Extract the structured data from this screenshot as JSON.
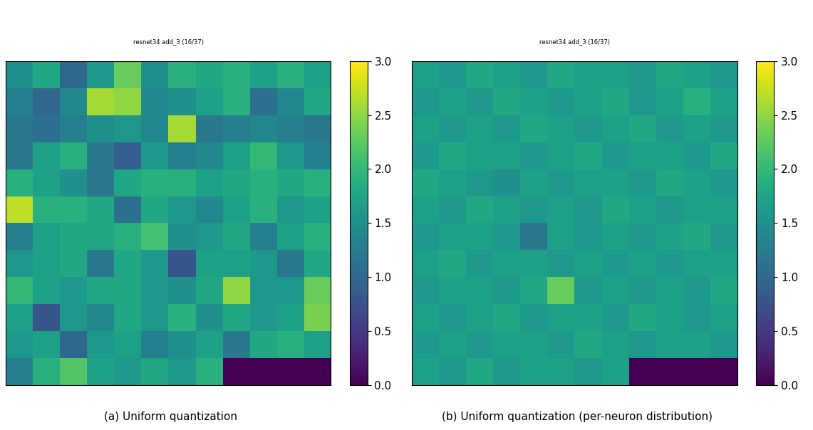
{
  "chart_data": [
    {
      "type": "heatmap",
      "title": "resnet34 add_3 (16/37)",
      "caption": "(a) Uniform quantization",
      "tick_labels": false,
      "color": "viridis",
      "cells": [
        [
          1.5,
          1.8,
          1.0,
          1.6,
          2.3,
          1.5,
          1.9,
          1.8,
          1.9,
          1.7,
          1.9,
          1.7
        ],
        [
          1.3,
          1.0,
          1.4,
          2.6,
          2.5,
          1.4,
          1.5,
          1.7,
          1.9,
          1.1,
          1.4,
          1.8
        ],
        [
          1.2,
          1.1,
          1.3,
          1.5,
          1.6,
          1.4,
          2.6,
          1.2,
          1.3,
          1.4,
          1.3,
          1.2
        ],
        [
          1.2,
          1.7,
          1.9,
          1.2,
          0.9,
          1.6,
          1.3,
          1.4,
          1.7,
          2.0,
          1.6,
          1.3
        ],
        [
          1.9,
          1.7,
          1.5,
          1.2,
          1.8,
          1.9,
          1.9,
          1.7,
          1.8,
          1.9,
          1.8,
          1.9
        ],
        [
          2.7,
          1.9,
          1.9,
          1.8,
          1.1,
          1.8,
          1.6,
          1.4,
          1.7,
          1.9,
          1.6,
          1.7
        ],
        [
          1.3,
          1.7,
          1.8,
          1.8,
          1.9,
          2.1,
          1.5,
          1.6,
          1.8,
          1.3,
          1.7,
          1.9
        ],
        [
          1.6,
          1.7,
          1.8,
          1.2,
          1.8,
          1.6,
          0.8,
          1.7,
          1.7,
          1.6,
          1.2,
          1.8
        ],
        [
          2.0,
          1.7,
          1.6,
          1.8,
          1.8,
          1.6,
          1.5,
          1.8,
          2.5,
          1.6,
          1.6,
          2.3
        ],
        [
          1.7,
          0.8,
          1.6,
          1.4,
          1.8,
          1.6,
          1.9,
          1.5,
          1.8,
          1.6,
          1.7,
          2.4
        ],
        [
          1.6,
          1.7,
          1.0,
          1.6,
          1.7,
          1.3,
          1.5,
          1.7,
          1.2,
          1.8,
          1.9,
          1.7
        ],
        [
          1.3,
          1.9,
          2.2,
          1.7,
          1.6,
          1.8,
          1.6,
          1.9,
          0.0,
          0.0,
          0.0,
          0.0
        ]
      ],
      "colorbar": {
        "range": [
          0,
          3
        ],
        "ticks": [
          {
            "value": 0,
            "label": "0.0"
          },
          {
            "value": 0.5,
            "label": "0.5"
          },
          {
            "value": 1,
            "label": "1.0"
          },
          {
            "value": 1.5,
            "label": "1.5"
          },
          {
            "value": 2,
            "label": "2.0"
          },
          {
            "value": 2.5,
            "label": "2.5"
          },
          {
            "value": 3,
            "label": "3.0"
          }
        ]
      }
    },
    {
      "type": "heatmap",
      "title": "resnet34 add_3 (16/37)",
      "caption": "(b) Uniform quantization (per-neuron distribution)",
      "tick_labels": false,
      "color": "viridis",
      "cells": [
        [
          1.7,
          1.6,
          1.8,
          1.7,
          1.6,
          1.8,
          1.7,
          1.7,
          1.6,
          1.8,
          1.7,
          1.6
        ],
        [
          1.6,
          1.7,
          1.6,
          1.8,
          1.7,
          1.6,
          1.7,
          1.8,
          1.6,
          1.7,
          1.9,
          1.7
        ],
        [
          1.7,
          1.6,
          1.7,
          1.6,
          1.8,
          1.7,
          1.6,
          1.7,
          1.8,
          1.6,
          1.7,
          1.6
        ],
        [
          1.6,
          1.8,
          1.7,
          1.7,
          1.6,
          1.7,
          1.8,
          1.6,
          1.7,
          1.7,
          1.6,
          1.8
        ],
        [
          1.8,
          1.7,
          1.6,
          1.5,
          1.7,
          1.6,
          1.7,
          1.7,
          1.6,
          1.8,
          1.7,
          1.6
        ],
        [
          1.7,
          1.6,
          1.8,
          1.7,
          1.6,
          1.7,
          1.6,
          1.8,
          1.7,
          1.6,
          1.7,
          1.7
        ],
        [
          1.6,
          1.7,
          1.7,
          1.6,
          1.2,
          1.7,
          1.6,
          1.7,
          1.6,
          1.7,
          1.8,
          1.6
        ],
        [
          1.7,
          1.8,
          1.6,
          1.7,
          1.7,
          1.6,
          1.7,
          1.6,
          1.7,
          1.6,
          1.7,
          1.7
        ],
        [
          1.6,
          1.7,
          1.7,
          1.6,
          1.8,
          2.3,
          1.6,
          1.7,
          1.6,
          1.7,
          1.6,
          1.8
        ],
        [
          1.7,
          1.6,
          1.7,
          1.8,
          1.6,
          1.7,
          1.7,
          1.6,
          1.8,
          1.7,
          1.6,
          1.7
        ],
        [
          1.6,
          1.7,
          1.6,
          1.7,
          1.7,
          1.6,
          1.8,
          1.7,
          1.6,
          1.7,
          1.7,
          1.6
        ],
        [
          1.7,
          1.6,
          1.8,
          1.6,
          1.7,
          1.7,
          1.6,
          1.7,
          0.0,
          0.0,
          0.0,
          0.0
        ]
      ],
      "colorbar": {
        "range": [
          0,
          3
        ],
        "ticks": [
          {
            "value": 0,
            "label": "0.0"
          },
          {
            "value": 0.5,
            "label": "0.5"
          },
          {
            "value": 1,
            "label": "1.0"
          },
          {
            "value": 1.5,
            "label": "1.5"
          },
          {
            "value": 2,
            "label": "2.0"
          },
          {
            "value": 2.5,
            "label": "2.5"
          },
          {
            "value": 3,
            "label": "3.0"
          }
        ]
      }
    }
  ]
}
